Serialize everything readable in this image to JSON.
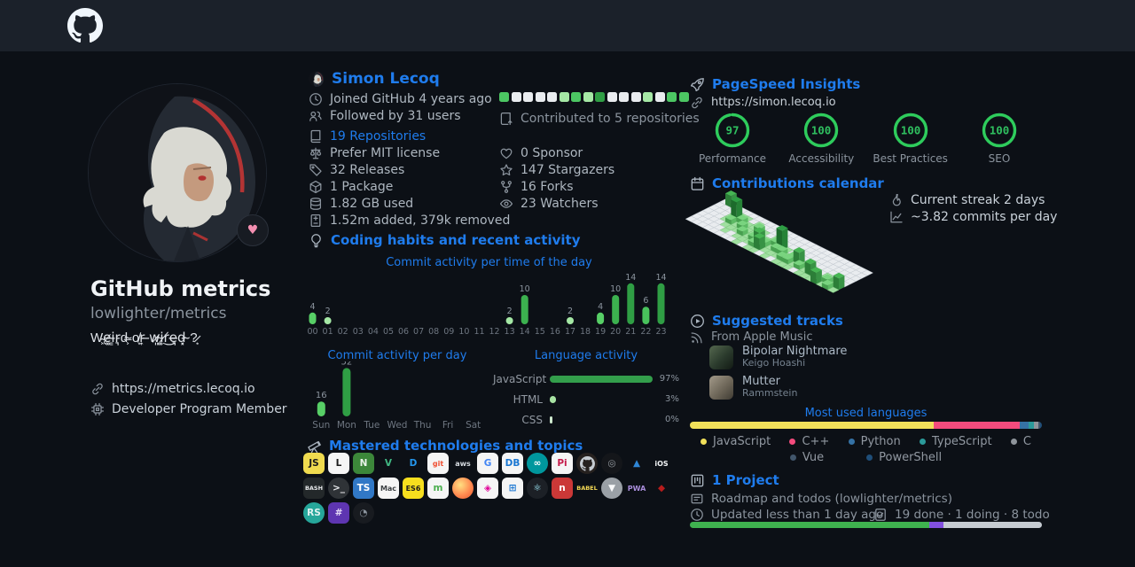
{
  "theme": {
    "bg": "#0c1016",
    "header_bg": "#1b212a",
    "link": "#1f7ced",
    "muted": "#8b949e",
    "bright": "#f0f3f6",
    "green_levels": [
      "#eceff1",
      "#a5e8a5",
      "#57cf66",
      "#3cb14f",
      "#2f9e44"
    ]
  },
  "header": {
    "logo": "github-octocat"
  },
  "profile": {
    "title": "GitHub metrics",
    "subtitle": "lowlighter/metrics",
    "bio": "W̴͖e̷͚i̶͇r̵͉d̶͕ ̴o̸͙r̵͎ ̶w̷͈i̴͚r̸͜e̶͉d̵͓ ̴?̷͙",
    "website": "https://metrics.lecoq.io",
    "membership": "Developer Program Member"
  },
  "user": {
    "name": "Simon Lecoq",
    "identity": [
      {
        "icon": "clock",
        "text": "Joined GitHub 4 years ago"
      },
      {
        "icon": "people",
        "text": "Followed by 31 users"
      }
    ],
    "repo_stats": [
      {
        "icon": "repo",
        "text": "19 Repositories",
        "link": true
      },
      {
        "icon": "law",
        "text": "Prefer MIT license"
      },
      {
        "icon": "tag",
        "text": "32 Releases"
      },
      {
        "icon": "package",
        "text": "1 Package"
      },
      {
        "icon": "database",
        "text": "1.82 GB used"
      },
      {
        "icon": "diff",
        "text": "1.52m added, 379k removed"
      }
    ],
    "contrib_squares": [
      2,
      0,
      0,
      0,
      0,
      1,
      2,
      1,
      3,
      0,
      0,
      0,
      1,
      0,
      2,
      2
    ],
    "contributed": {
      "icon": "contrib",
      "text": "Contributed to 5 repositories"
    },
    "community": [
      {
        "icon": "heart",
        "text": "0 Sponsor"
      },
      {
        "icon": "star",
        "text": "147 Stargazers"
      },
      {
        "icon": "fork",
        "text": "16 Forks"
      },
      {
        "icon": "eye",
        "text": "23 Watchers"
      }
    ]
  },
  "habits": {
    "icon": "bulb",
    "title": "Coding habits and recent activity"
  },
  "charts": {
    "hours": {
      "type": "bar",
      "title": "Commit activity per time of the day",
      "labels": [
        "00",
        "01",
        "02",
        "03",
        "04",
        "05",
        "06",
        "07",
        "08",
        "09",
        "10",
        "11",
        "12",
        "13",
        "14",
        "15",
        "16",
        "17",
        "18",
        "19",
        "20",
        "21",
        "22",
        "23"
      ],
      "values": [
        4,
        2,
        0,
        0,
        0,
        0,
        0,
        0,
        0,
        0,
        0,
        0,
        0,
        2,
        10,
        0,
        0,
        2,
        0,
        4,
        10,
        14,
        6,
        14
      ]
    },
    "days": {
      "type": "bar",
      "title": "Commit activity per day",
      "labels": [
        "Sun",
        "Mon",
        "Tue",
        "Wed",
        "Thu",
        "Fri",
        "Sat"
      ],
      "values": [
        16,
        52,
        0,
        0,
        0,
        0,
        0
      ]
    },
    "language_activity": {
      "type": "bar",
      "title": "Language activity",
      "rows": [
        {
          "name": "JavaScript",
          "pct": 97,
          "display": "97%"
        },
        {
          "name": "HTML",
          "pct": 3,
          "display": "3%"
        },
        {
          "name": "CSS",
          "pct": 0,
          "display": "0%"
        }
      ]
    }
  },
  "tech": {
    "icon": "telescope",
    "title": "Mastered technologies and topics",
    "tiles": [
      {
        "id": "javascript",
        "label": "JS",
        "bg": "#f0db4f",
        "fg": "#1b1b1b"
      },
      {
        "id": "linux",
        "label": "L",
        "bg": "#f5f5f5",
        "fg": "#1b1b1b"
      },
      {
        "id": "nodejs",
        "label": "N",
        "bg": "#3c873a",
        "fg": "#eaf5ea"
      },
      {
        "id": "vuejs",
        "label": "V",
        "bg": "none",
        "fg": "#41b883"
      },
      {
        "id": "docker",
        "label": "D",
        "bg": "none",
        "fg": "#2496ed"
      },
      {
        "id": "git",
        "label": "git",
        "bg": "#f5f5f5",
        "fg": "#f05033"
      },
      {
        "id": "aws",
        "label": "aws",
        "bg": "none",
        "fg": "#d7dce1"
      },
      {
        "id": "google",
        "label": "G",
        "bg": "#f5f5f5",
        "fg": "#4285f4"
      },
      {
        "id": "sql",
        "label": "DB",
        "bg": "#f5f5f5",
        "fg": "#1976d2"
      },
      {
        "id": "arduino",
        "label": "∞",
        "bg": "#00979d",
        "fg": "#ffffff",
        "shape": "circle"
      },
      {
        "id": "raspberry-pi",
        "label": "Pi",
        "bg": "#f5f5f5",
        "fg": "#c51a4a"
      },
      {
        "id": "github",
        "label": "",
        "bg": "#26211f",
        "fg": "#c5cbd1",
        "shape": "circle",
        "glyph": "octocat"
      },
      {
        "id": "opera",
        "label": "◎",
        "bg": "#14161a",
        "fg": "#9aa0a6",
        "shape": "circle"
      },
      {
        "id": "azure",
        "label": "▲",
        "bg": "none",
        "fg": "#2f86d6"
      },
      {
        "id": "ios",
        "label": "iOS",
        "bg": "none",
        "fg": "#f2f4f6"
      },
      {
        "id": "bash",
        "label": "BASH",
        "bg": "#23282a",
        "fg": "#e8eaec"
      },
      {
        "id": "terminal",
        "label": ">_",
        "bg": "#2f3337",
        "fg": "#e8eaec",
        "shape": "circle"
      },
      {
        "id": "typescript",
        "label": "TS",
        "bg": "#3178c6",
        "fg": "#ffffff"
      },
      {
        "id": "macos",
        "label": "Mac",
        "bg": "#f5f5f5",
        "fg": "#3c4043"
      },
      {
        "id": "es6",
        "label": "ES6",
        "bg": "#f7df1e",
        "fg": "#1b1b1b"
      },
      {
        "id": "mongodb",
        "label": "m",
        "bg": "#f5f5f5",
        "fg": "#4caf50"
      },
      {
        "id": "firefox",
        "label": "",
        "bg": "radial-gradient(circle at 38% 35%, #ffe082, #ff8a50 55%, #e4572e)",
        "fg": "#fff",
        "shape": "circle"
      },
      {
        "id": "graphql",
        "label": "◈",
        "bg": "#f5f5f5",
        "fg": "#e10098"
      },
      {
        "id": "windows",
        "label": "⊞",
        "bg": "#f5f5f5",
        "fg": "#1976d2"
      },
      {
        "id": "electron",
        "label": "⚛",
        "bg": "#1c2026",
        "fg": "#9feaf9",
        "shape": "circle"
      },
      {
        "id": "npm",
        "label": "n",
        "bg": "#cb3837",
        "fg": "#ffffff"
      },
      {
        "id": "babel",
        "label": "BABEL",
        "bg": "none",
        "fg": "#f5da55"
      },
      {
        "id": "v8",
        "label": "▼",
        "bg": "#9aa0a6",
        "fg": "#f8f9fa",
        "shape": "circle"
      },
      {
        "id": "pwa",
        "label": "PWA",
        "bg": "none",
        "fg": "#a98ddb"
      },
      {
        "id": "rust",
        "label": "◆",
        "bg": "none",
        "fg": "#b71c1c"
      },
      {
        "id": "teal-logo",
        "label": "RS",
        "bg": "#26a69a",
        "fg": "#e0f2f1",
        "shape": "circle"
      },
      {
        "id": "purple-logo",
        "label": "#",
        "bg": "#5e35b1",
        "fg": "#e6dcf7"
      },
      {
        "id": "dark-logo",
        "label": "◔",
        "bg": "#181b20",
        "fg": "#8b949e",
        "shape": "circle"
      }
    ]
  },
  "pagespeed": {
    "icon": "rocket",
    "title": "PageSpeed Insights",
    "url": "https://simon.lecoq.io",
    "gauges": [
      {
        "score": "97",
        "pct": 97,
        "label": "Performance"
      },
      {
        "score": "100",
        "pct": 100,
        "label": "Accessibility"
      },
      {
        "score": "100",
        "pct": 100,
        "label": "Best Practices"
      },
      {
        "score": "100",
        "pct": 100,
        "label": "SEO"
      }
    ],
    "ring_color": "#2ecc5c",
    "num_color": "#2fbf5f"
  },
  "calendar": {
    "icon": "calendar",
    "title": "Contributions calendar",
    "streak": {
      "icon": "flame",
      "text": "Current streak 2 days"
    },
    "average": {
      "icon": "graph",
      "text": "~3.82 commits per day"
    },
    "columns": [
      "0000000",
      "3000000",
      "1000000",
      "0011000",
      "0142100",
      "0121110",
      "0012100",
      "0111210",
      "0021111",
      "0012210",
      "0001321",
      "0011231",
      "0002110",
      "0004211",
      "0001210",
      "0000121",
      "0001221",
      "0000311",
      "0000120",
      "0000211",
      "0000131",
      "0000021",
      "0000113",
      "0000021",
      "0000012",
      "0000031"
    ]
  },
  "music": {
    "icon": "play",
    "title": "Suggested tracks",
    "source": {
      "icon": "rss",
      "text": "From Apple Music"
    },
    "tracks": [
      {
        "title": "Bipolar Nightmare",
        "artist": "Keigo Hoashi",
        "art": "linear-gradient(135deg,#55684f,#2a3a2c 55%,#121a14)"
      },
      {
        "title": "Mutter",
        "artist": "Rammstein",
        "art": "linear-gradient(135deg,#a39a8a,#6e6759 55%,#3f3b33)"
      }
    ]
  },
  "languages": {
    "title": "Most used languages",
    "segments": [
      {
        "name": "JavaScript",
        "color": "#f1e05a",
        "pct": 69.2
      },
      {
        "name": "C++",
        "color": "#f34b7d",
        "pct": 24.6
      },
      {
        "name": "Python",
        "color": "#3572a5",
        "pct": 2.4
      },
      {
        "name": "TypeScript",
        "color": "#2b9a9a",
        "pct": 1.6
      },
      {
        "name": "C",
        "color": "#8f959b",
        "pct": 1.1
      },
      {
        "name": "Vue",
        "color": "#41566b",
        "pct": 0.6
      },
      {
        "name": "PowerShell",
        "color": "#1f4e79",
        "pct": 0.5
      }
    ],
    "legend_row1": [
      "JavaScript",
      "C++",
      "Python",
      "TypeScript",
      "C"
    ],
    "legend_row2": [
      "Vue",
      "PowerShell"
    ]
  },
  "project": {
    "icon": "project",
    "title": "1 Project",
    "name": {
      "icon": "note",
      "text": "Roadmap and todos (lowlighter/metrics)"
    },
    "updated": {
      "icon": "clock",
      "text": "Updated less than 1 day ago"
    },
    "status": {
      "icon": "checklist",
      "text": "19 done · 1 doing · 8 todo"
    },
    "progress": [
      {
        "label": "done",
        "color": "#3fb24f",
        "pct": 68
      },
      {
        "label": "doing",
        "color": "#8250df",
        "pct": 4
      },
      {
        "label": "todo",
        "color": "#c6ccd2",
        "pct": 28
      }
    ]
  }
}
